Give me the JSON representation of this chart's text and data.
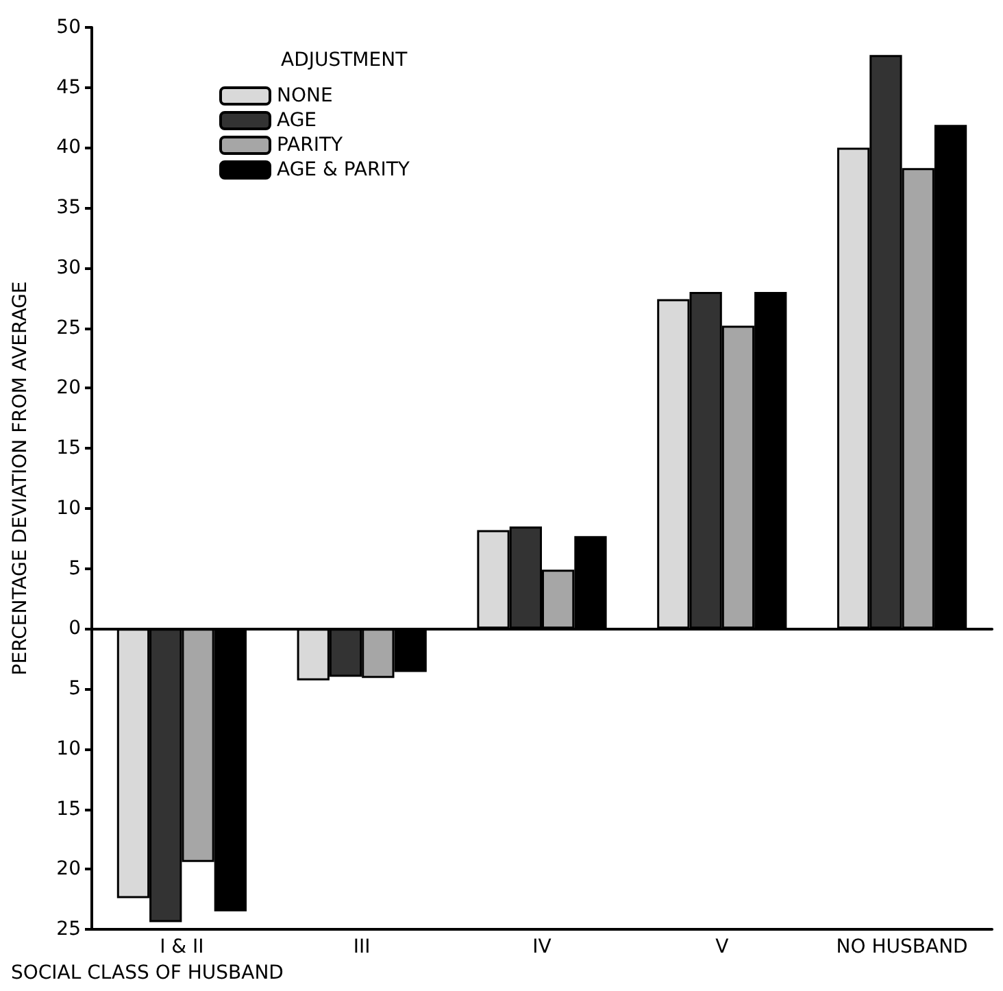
{
  "chart_data": {
    "type": "bar",
    "xlabel": "SOCIAL CLASS OF HUSBAND",
    "ylabel": "PERCENTAGE DEVIATION FROM AVERAGE",
    "legend_title": "ADJUSTMENT",
    "categories": [
      "I & II",
      "III",
      "IV",
      "V",
      "NO HUSBAND"
    ],
    "series": [
      {
        "name": "NONE",
        "color": "#d9d9d9",
        "values": [
          -22.4,
          -4.3,
          8.2,
          27.4,
          40.0
        ]
      },
      {
        "name": "AGE",
        "color": "#333333",
        "values": [
          -24.4,
          -4.0,
          8.5,
          28.0,
          47.7
        ]
      },
      {
        "name": "PARITY",
        "color": "#a6a6a6",
        "values": [
          -19.4,
          -4.1,
          4.9,
          25.2,
          38.3
        ]
      },
      {
        "name": "AGE & PARITY",
        "color": "#000000",
        "values": [
          -23.5,
          -3.6,
          7.7,
          28.0,
          41.9
        ]
      }
    ],
    "ylim": [
      -25,
      50
    ],
    "yticks": [
      {
        "value": -25,
        "label": "25"
      },
      {
        "value": -20,
        "label": "20"
      },
      {
        "value": -15,
        "label": "15"
      },
      {
        "value": -10,
        "label": "10"
      },
      {
        "value": -5,
        "label": "5"
      },
      0,
      5,
      10,
      15,
      20,
      25,
      30,
      35,
      40,
      45,
      50
    ],
    "legend": "top left"
  }
}
